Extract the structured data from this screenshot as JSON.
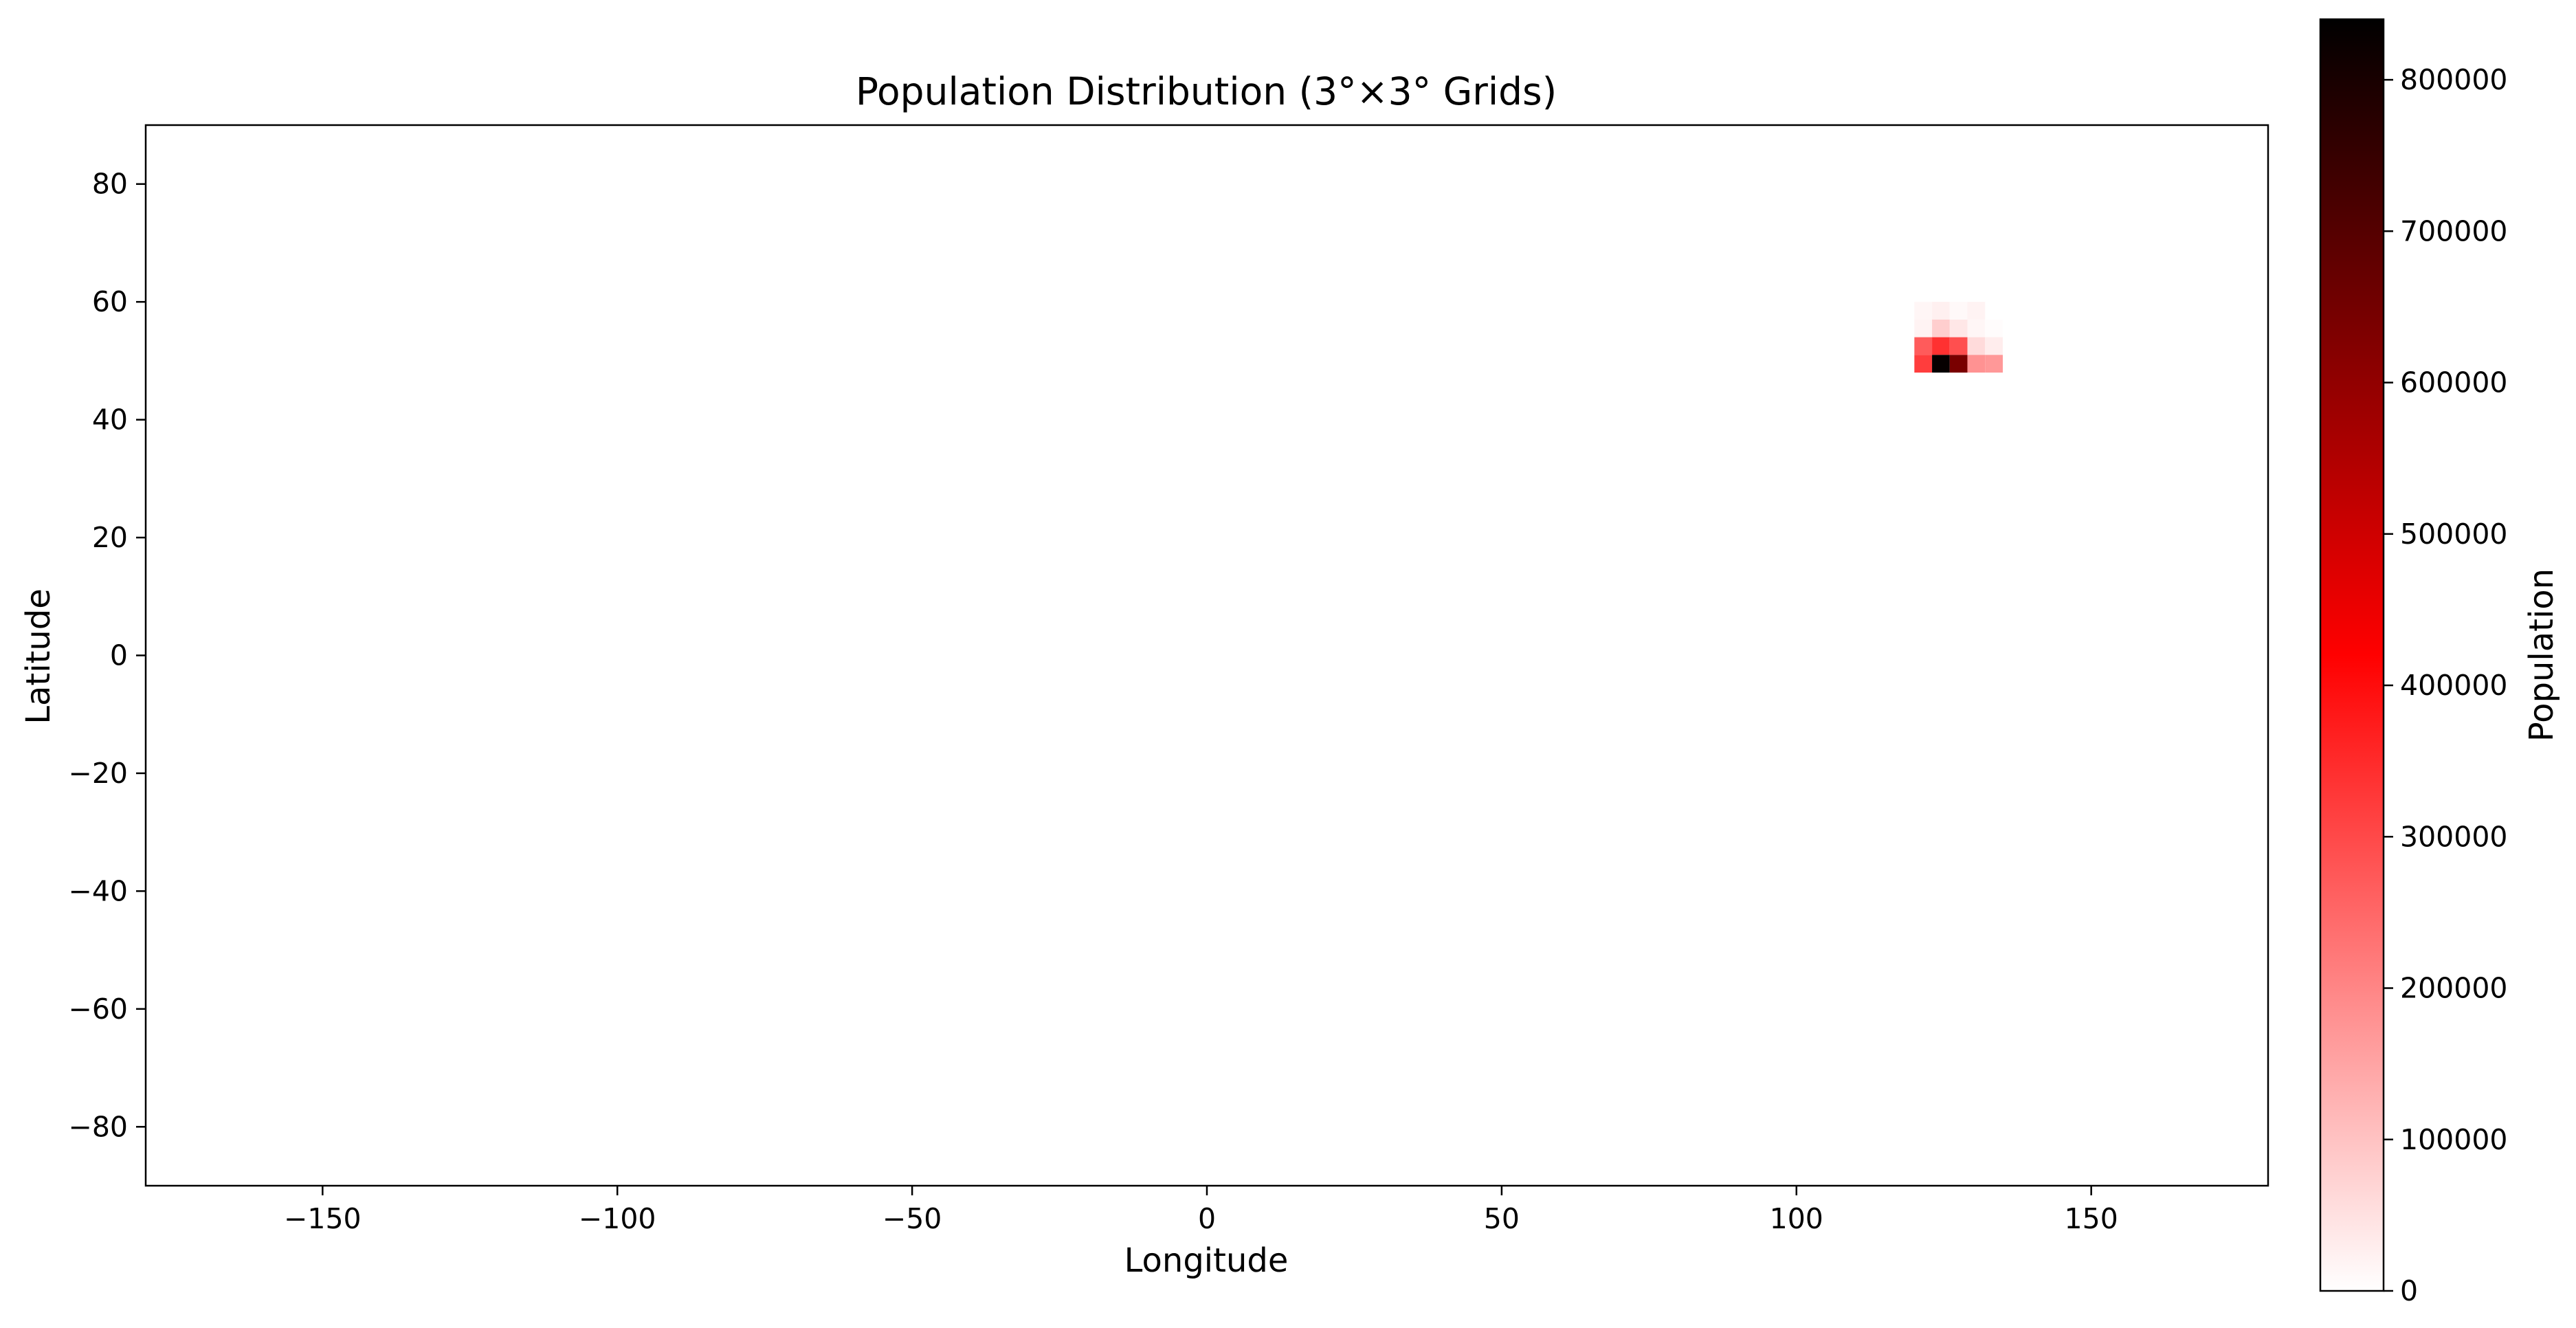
{
  "chart_data": {
    "type": "heatmap",
    "title": "Population Distribution (3°×3° Grids)",
    "xlabel": "Longitude",
    "ylabel": "Latitude",
    "xlim": [
      -180,
      180
    ],
    "ylim": [
      -90,
      90
    ],
    "xticks": [
      -150,
      -100,
      -50,
      0,
      50,
      100,
      150
    ],
    "yticks": [
      -80,
      -60,
      -40,
      -20,
      0,
      20,
      40,
      60,
      80
    ],
    "xtick_labels": [
      "−150",
      "−100",
      "−50",
      "0",
      "50",
      "100",
      "150"
    ],
    "ytick_labels": [
      "−80",
      "−60",
      "−40",
      "−20",
      "0",
      "20",
      "40",
      "60",
      "80"
    ],
    "grid_size_deg": 3,
    "cells": [
      {
        "lon": 120,
        "lat": 57,
        "value": 15000
      },
      {
        "lon": 123,
        "lat": 57,
        "value": 25000
      },
      {
        "lon": 126,
        "lat": 57,
        "value": 10000
      },
      {
        "lon": 129,
        "lat": 57,
        "value": 20000
      },
      {
        "lon": 120,
        "lat": 54,
        "value": 20000
      },
      {
        "lon": 123,
        "lat": 54,
        "value": 80000
      },
      {
        "lon": 126,
        "lat": 54,
        "value": 40000
      },
      {
        "lon": 129,
        "lat": 54,
        "value": 15000
      },
      {
        "lon": 132,
        "lat": 54,
        "value": 5000
      },
      {
        "lon": 120,
        "lat": 51,
        "value": 270000
      },
      {
        "lon": 123,
        "lat": 51,
        "value": 340000
      },
      {
        "lon": 126,
        "lat": 51,
        "value": 290000
      },
      {
        "lon": 129,
        "lat": 51,
        "value": 60000
      },
      {
        "lon": 132,
        "lat": 51,
        "value": 30000
      },
      {
        "lon": 120,
        "lat": 48,
        "value": 320000
      },
      {
        "lon": 123,
        "lat": 48,
        "value": 830000
      },
      {
        "lon": 126,
        "lat": 48,
        "value": 640000
      },
      {
        "lon": 129,
        "lat": 48,
        "value": 180000
      },
      {
        "lon": 132,
        "lat": 48,
        "value": 170000
      }
    ],
    "colorbar": {
      "label": "Population",
      "min": 0,
      "max": 840000,
      "ticks": [
        0,
        100000,
        200000,
        300000,
        400000,
        500000,
        600000,
        700000,
        800000
      ],
      "tick_labels": [
        "0",
        "100000",
        "200000",
        "300000",
        "400000",
        "500000",
        "600000",
        "700000",
        "800000"
      ],
      "colors": [
        "#ffffff",
        "#ff0000",
        "#000000"
      ]
    }
  }
}
